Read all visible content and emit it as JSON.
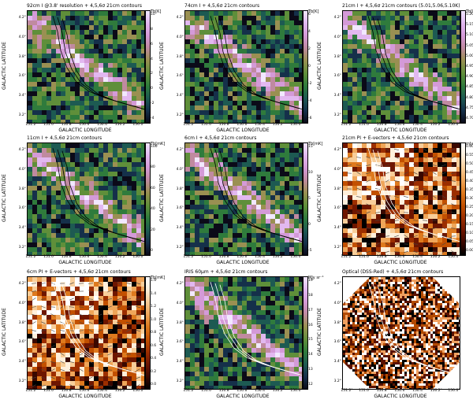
{
  "axes": {
    "xlabel": "GALACTIC LONGITUDE",
    "ylabel": "GALACTIC LATITUDE",
    "xticks": [
      "151.2°",
      "151.0°",
      "150.8°",
      "150.6°",
      "150.4°",
      "150.2°",
      "150.0°"
    ],
    "yticks": [
      "4.2°",
      "4.0°",
      "3.8°",
      "3.6°",
      "3.4°",
      "3.2°"
    ]
  },
  "panels": [
    {
      "title": "92cm I @3.8' resolution + 4,5,6σ 21cm contours",
      "unit": "Tb[K]",
      "cbticks": [
        "10",
        "8",
        "6",
        "4",
        "2",
        "0",
        "-2",
        "-4"
      ],
      "cmap": "cubehelix"
    },
    {
      "title": "74cm I + 4,5,6σ 21cm contours",
      "unit": "Tb[K]",
      "cbticks": [
        "6",
        "4",
        "2",
        "0",
        "-2",
        "-4",
        "-6"
      ],
      "cmap": "cubehelix"
    },
    {
      "title": "21cm I + 4,5,6σ 21cm contours (5.01,5.06,5.10K)",
      "unit": "Tb[K]",
      "cbticks": [
        "5.20",
        "5.15",
        "5.10",
        "5.05",
        "5.00",
        "4.95",
        "4.90",
        "4.85",
        "4.80",
        "4.75",
        "4.70"
      ],
      "cmap": "cubehelix"
    },
    {
      "title": "11cm I + 4,5,6σ 21cm contours",
      "unit": "Tb[mK]",
      "cbticks": [
        "100",
        "80",
        "60",
        "40",
        "20",
        "0"
      ],
      "cmap": "cubehelix"
    },
    {
      "title": "6cm I + 4,5,6σ 21cm contours",
      "unit": "Tb[mK]",
      "cbticks": [
        "15",
        "10",
        "5",
        "0",
        "-5"
      ],
      "cmap": "cubehelix"
    },
    {
      "title": "21cm PI + E-vectors + 4,5,6σ 21cm contours",
      "unit": "mJy beam⁻¹",
      "cbticks": [
        "0.60",
        "0.55",
        "0.50",
        "0.45",
        "0.40",
        "0.35",
        "0.30",
        "0.25",
        "0.20",
        "0.15",
        "0.10",
        "0.05",
        "0.00"
      ],
      "cmap": "heat"
    },
    {
      "title": "6cm PI + E-vectors + 4,5,6σ 21cm contours",
      "unit": "Tb[mK]",
      "cbticks": [
        "1.6",
        "1.4",
        "1.2",
        "1.0",
        "0.8",
        "0.6",
        "0.4",
        "0.2",
        "0.0"
      ],
      "cmap": "heat"
    },
    {
      "title": "IRIS 60μm + 4,5,6σ 21cm contours",
      "unit": "MJy sr⁻¹",
      "cbticks": [
        "19",
        "18",
        "17",
        "16",
        "15",
        "14",
        "13",
        "12"
      ],
      "cmap": "cubehelix"
    },
    {
      "title": "Optical (DSS-Red) + 4,5,6σ 21cm contours",
      "unit": "",
      "cbticks": [],
      "cmap": "optical"
    }
  ]
}
